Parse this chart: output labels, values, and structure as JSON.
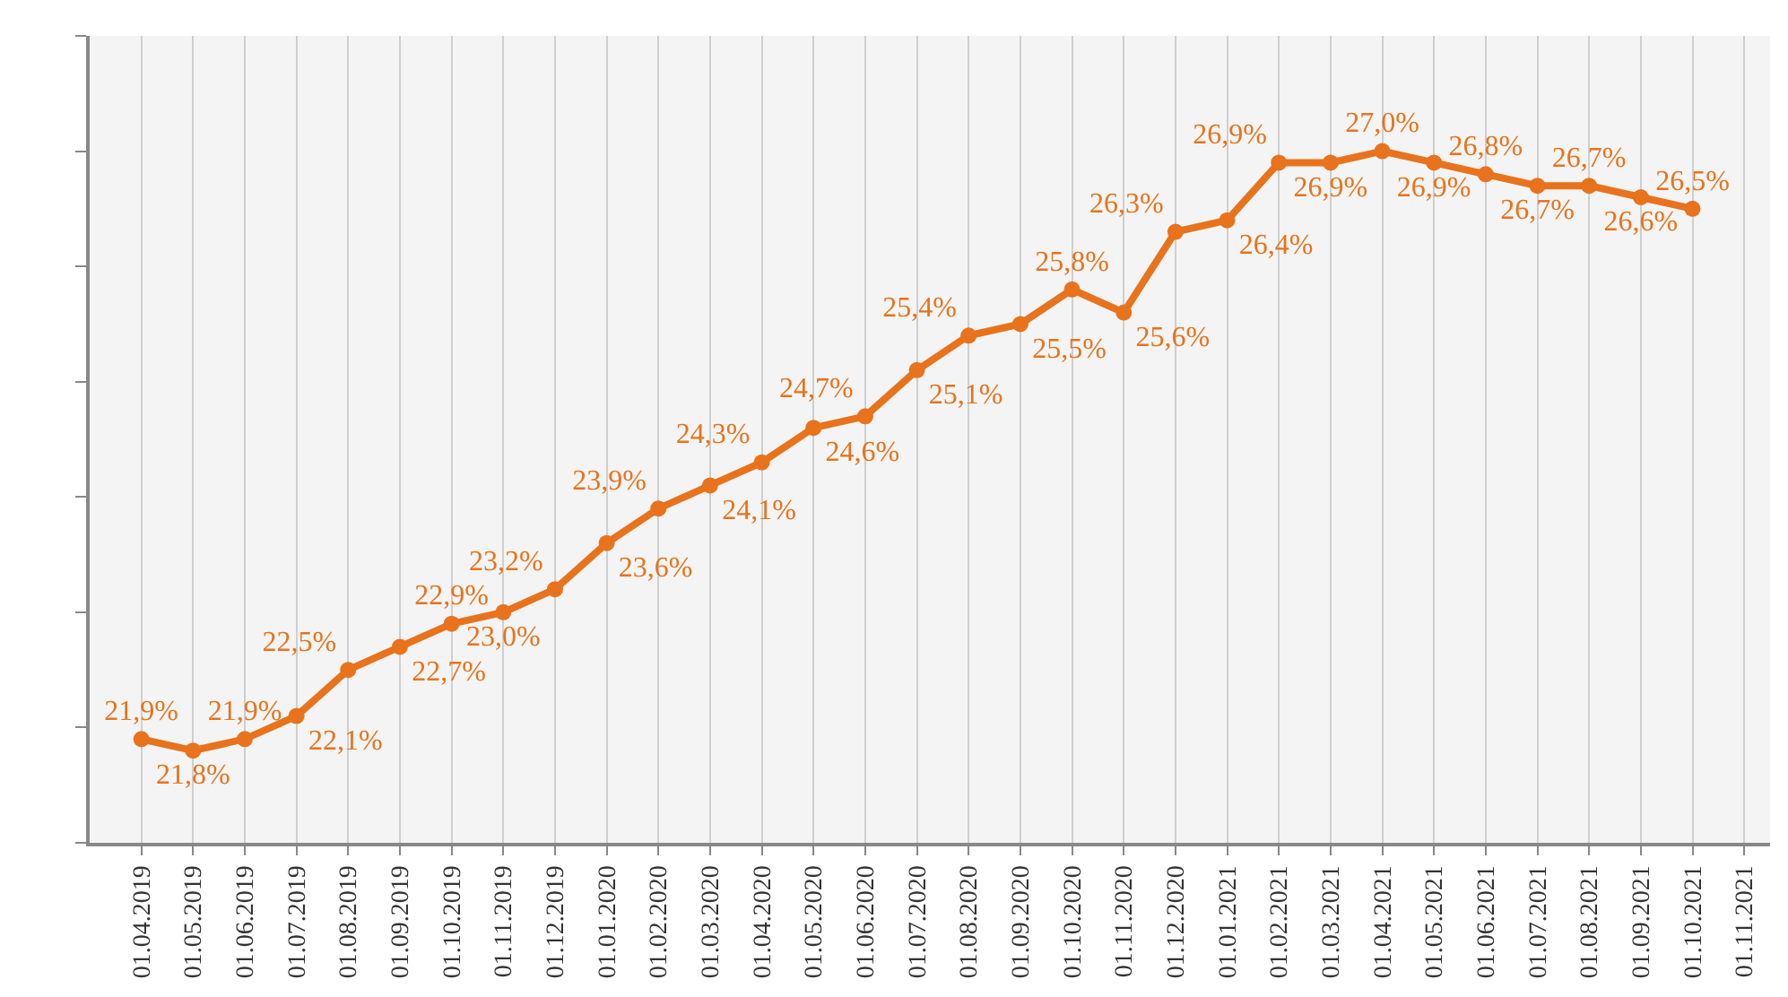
{
  "chart_data": {
    "type": "line",
    "categories": [
      "01.04.2019",
      "01.05.2019",
      "01.06.2019",
      "01.07.2019",
      "01.08.2019",
      "01.09.2019",
      "01.10.2019",
      "01.11.2019",
      "01.12.2019",
      "01.01.2020",
      "01.02.2020",
      "01.03.2020",
      "01.04.2020",
      "01.05.2020",
      "01.06.2020",
      "01.07.2020",
      "01.08.2020",
      "01.09.2020",
      "01.10.2020",
      "01.11.2020",
      "01.12.2020",
      "01.01.2021",
      "01.02.2021",
      "01.03.2021",
      "01.04.2021",
      "01.05.2021",
      "01.06.2021",
      "01.07.2021",
      "01.08.2021",
      "01.09.2021",
      "01.10.2021",
      "01.11.2021"
    ],
    "series": [
      {
        "color": "#e8731c",
        "values": [
          21.9,
          21.8,
          21.9,
          22.1,
          22.5,
          22.7,
          22.9,
          23.0,
          23.2,
          23.6,
          23.9,
          24.1,
          24.3,
          24.6,
          24.7,
          25.1,
          25.4,
          25.5,
          25.8,
          25.6,
          26.3,
          26.4,
          26.9,
          26.9,
          27.0,
          26.9,
          26.8,
          26.7,
          26.7,
          26.6,
          26.5,
          null
        ],
        "value_labels": [
          "21,9%",
          "21,8%",
          "21,9%",
          "22,1%",
          "22,5%",
          "22,7%",
          "22,9%",
          "23,0%",
          "23,2%",
          "23,6%",
          "23,9%",
          "24,1%",
          "24,3%",
          "24,6%",
          "24,7%",
          "25,1%",
          "25,4%",
          "25,5%",
          "25,8%",
          "25,6%",
          "26,3%",
          "26,4%",
          "26,9%",
          "26,9%",
          "27,0%",
          "26,9%",
          "26,8%",
          "26,7%",
          "26,7%",
          "26,6%",
          "26,5%",
          null
        ]
      }
    ],
    "ylim": [
      21,
      28
    ],
    "yticks": [
      {
        "value": 21,
        "label": null
      },
      {
        "value": 22,
        "label": null
      },
      {
        "value": 23,
        "label": null
      },
      {
        "value": 24,
        "label": null
      },
      {
        "value": 25,
        "label": null
      },
      {
        "value": 26,
        "label": null
      },
      {
        "value": 27,
        "label": null
      },
      {
        "value": 28,
        "label": null
      }
    ],
    "tick_labels": "x",
    "grid": "x",
    "marker": "circle",
    "line_style": "solid"
  }
}
